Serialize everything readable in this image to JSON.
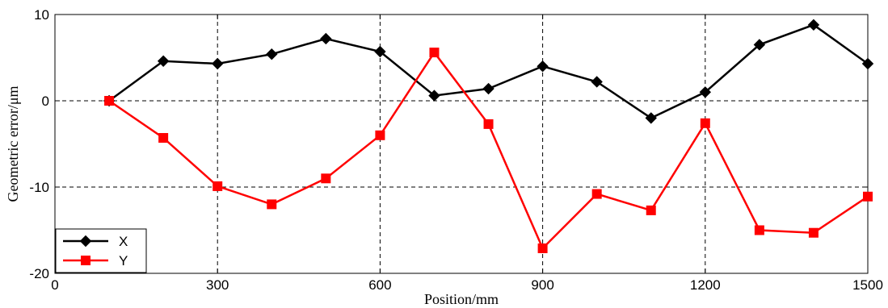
{
  "chart_data": {
    "type": "line",
    "title": "",
    "xlabel": "Position/mm",
    "ylabel": "Geometric error/μm",
    "xlim": [
      0,
      1500
    ],
    "ylim": [
      -20,
      10
    ],
    "xticks": [
      0,
      300,
      600,
      900,
      1200,
      1500
    ],
    "yticks": [
      -20,
      -10,
      0,
      10
    ],
    "grid": true,
    "legend_position": "bottom-left",
    "x": [
      100,
      200,
      300,
      400,
      500,
      600,
      700,
      800,
      900,
      1000,
      1100,
      1200,
      1300,
      1400,
      1500
    ],
    "series": [
      {
        "name": "X",
        "color": "#000000",
        "marker": "diamond",
        "values": [
          0,
          4.6,
          4.3,
          5.4,
          7.2,
          5.7,
          0.6,
          1.4,
          4.0,
          2.2,
          -2.0,
          1.0,
          6.5,
          8.8,
          4.3
        ]
      },
      {
        "name": "Y",
        "color": "#ff0000",
        "marker": "square",
        "values": [
          0,
          -4.3,
          -9.9,
          -12.0,
          -9.0,
          -4.0,
          5.6,
          -2.7,
          -17.1,
          -10.8,
          -12.7,
          -2.6,
          -15.0,
          -15.3,
          -11.1
        ]
      }
    ]
  }
}
